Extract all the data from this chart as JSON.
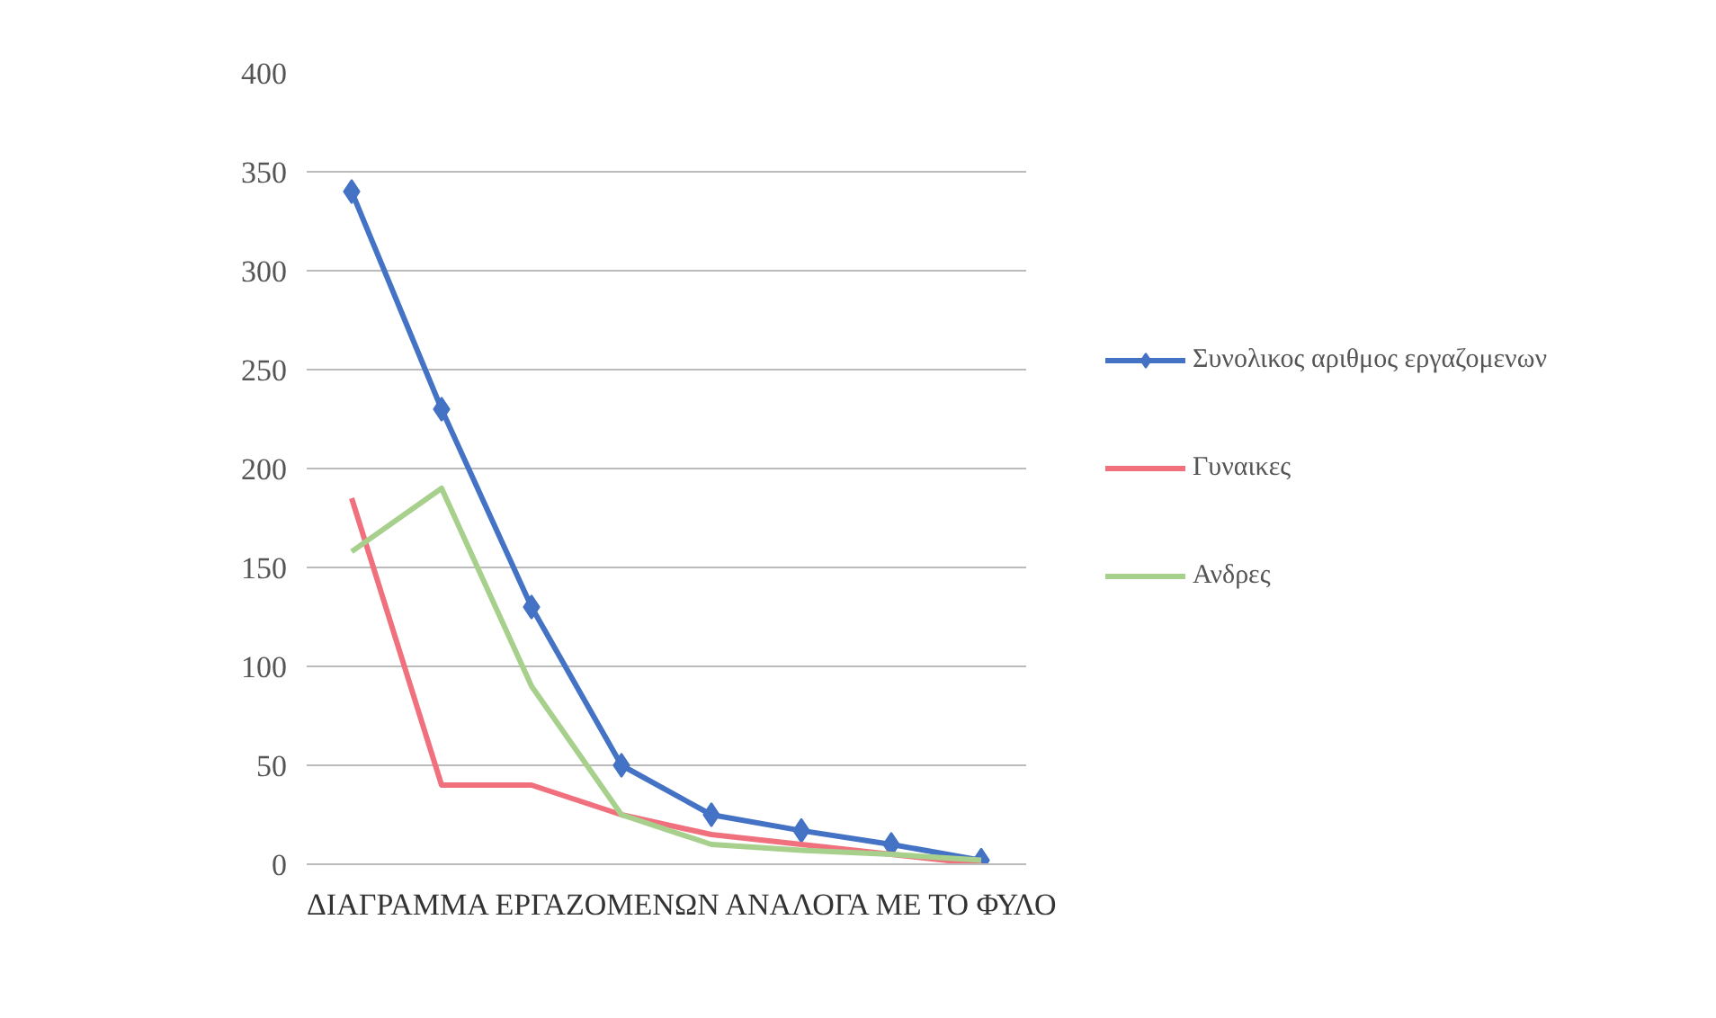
{
  "chart_data": {
    "type": "line",
    "title": "ΔΙΑΓΡΑΜΜΑ ΕΡΓΑΖΟΜΕΝΩΝ ΑΝΑΛΟΓΑ ΜΕ ΤΟ ΦΥΛΟ",
    "categories": [
      null,
      null,
      null,
      null,
      null,
      null,
      null,
      null
    ],
    "series": [
      {
        "name": "Συνολικος αριθμος εργαζομενων",
        "color": "#4472c4",
        "marker": "diamond",
        "values": [
          340,
          230,
          130,
          50,
          25,
          17,
          10,
          2
        ]
      },
      {
        "name": "Γυναικες",
        "color": "#f0707e",
        "values": [
          185,
          40,
          40,
          25,
          15,
          10,
          5,
          0
        ]
      },
      {
        "name": "Ανδρες",
        "color": "#a8d08d",
        "values": [
          158,
          190,
          90,
          25,
          10,
          7,
          5,
          2
        ]
      }
    ],
    "ylim": [
      0,
      400
    ],
    "yticks": [
      0,
      50,
      100,
      150,
      200,
      250,
      300,
      350,
      400
    ],
    "grid": "y",
    "legend": "right",
    "marker": "none"
  }
}
